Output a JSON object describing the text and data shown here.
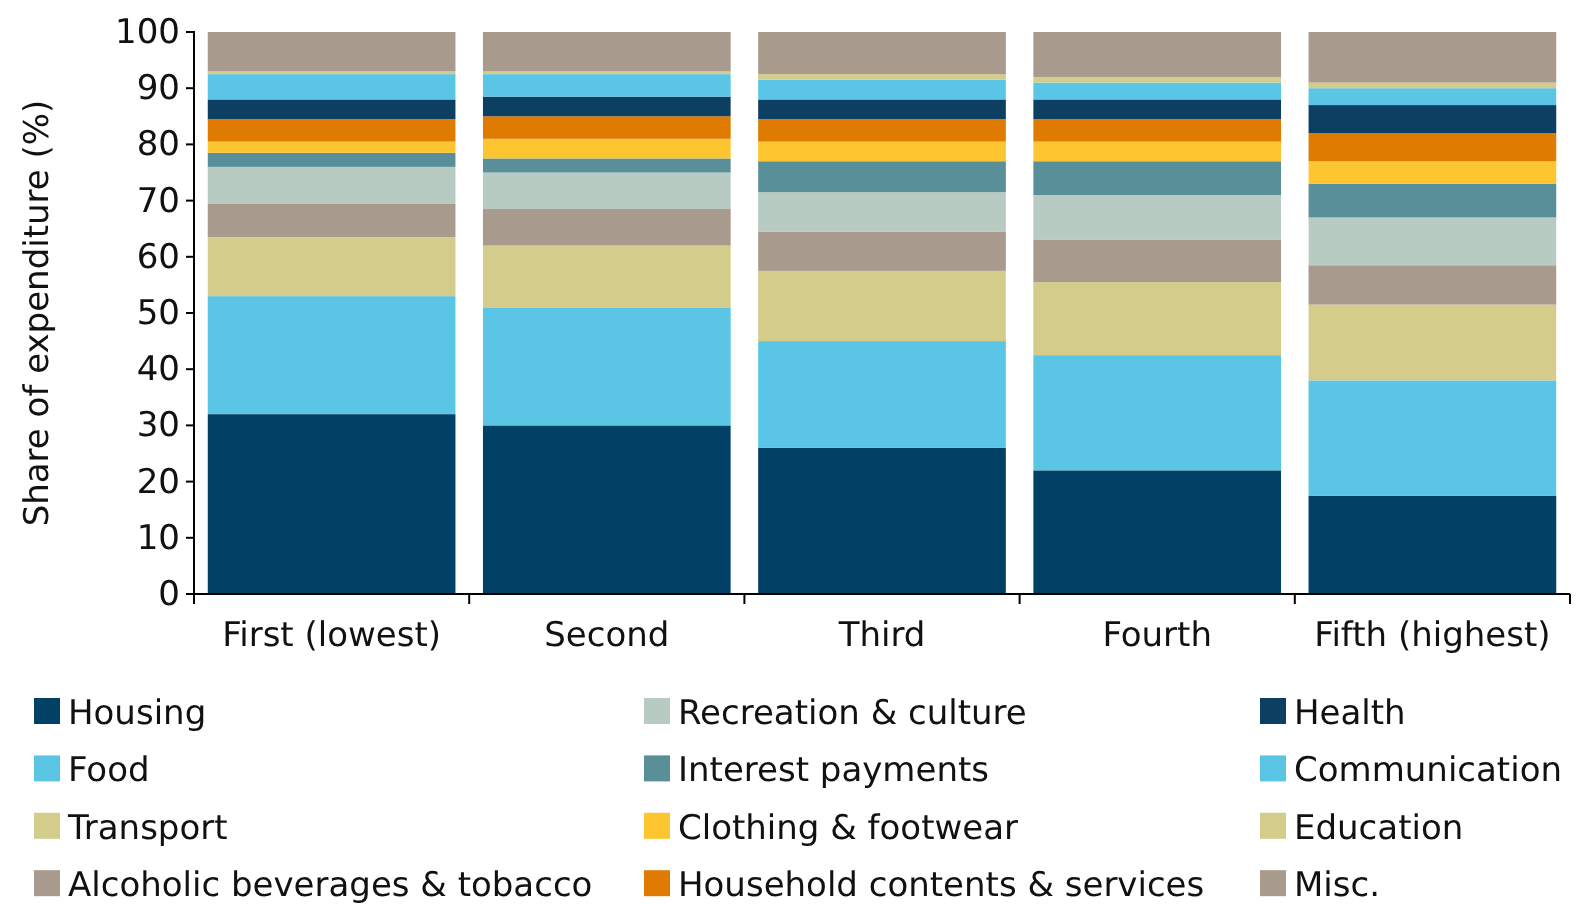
{
  "chart_data": {
    "type": "bar",
    "stacked": true,
    "ylabel": "Share of expenditure (%)",
    "categories": [
      "First (lowest)",
      "Second",
      "Third",
      "Fourth",
      "Fifth (highest)"
    ],
    "ylim": [
      0,
      100
    ],
    "yticks": [
      0,
      10,
      20,
      30,
      40,
      50,
      60,
      70,
      80,
      90,
      100
    ],
    "grid": false,
    "legend": "bottom",
    "series": [
      {
        "name": "Housing",
        "color": "#004165",
        "values": [
          32,
          30,
          26,
          22,
          17.5
        ]
      },
      {
        "name": "Food",
        "color": "#5bc5e6",
        "values": [
          21,
          21,
          19,
          20.5,
          20.5
        ]
      },
      {
        "name": "Transport",
        "color": "#d3cc8b",
        "values": [
          10.5,
          11,
          12.5,
          13,
          13.5
        ]
      },
      {
        "name": "Alcoholic beverages & tobacco",
        "color": "#a89a8c",
        "values": [
          6,
          6.5,
          7,
          7.5,
          7
        ]
      },
      {
        "name": "Recreation & culture",
        "color": "#b8cbc2",
        "values": [
          6.5,
          6.5,
          7,
          8,
          8.5
        ]
      },
      {
        "name": "Interest payments",
        "color": "#588f99",
        "values": [
          2.5,
          2.5,
          5.5,
          6,
          6
        ]
      },
      {
        "name": "Clothing & footwear",
        "color": "#fdc530",
        "values": [
          2,
          3.5,
          3.5,
          3.5,
          4
        ]
      },
      {
        "name": "Household contents & services",
        "color": "#de7b00",
        "values": [
          4,
          4,
          4,
          4,
          5
        ]
      },
      {
        "name": "Health",
        "color": "#0d3f63",
        "values": [
          3.5,
          3.5,
          3.5,
          3.5,
          5
        ]
      },
      {
        "name": "Communication",
        "color": "#5bc5e6",
        "values": [
          4.5,
          4,
          3.5,
          3,
          3
        ]
      },
      {
        "name": "Education",
        "color": "#d3cc8b",
        "values": [
          0.5,
          0.5,
          1,
          1,
          1
        ]
      },
      {
        "name": "Misc.",
        "color": "#a89a8c",
        "values": [
          7,
          7,
          7.5,
          8,
          9
        ]
      }
    ]
  }
}
